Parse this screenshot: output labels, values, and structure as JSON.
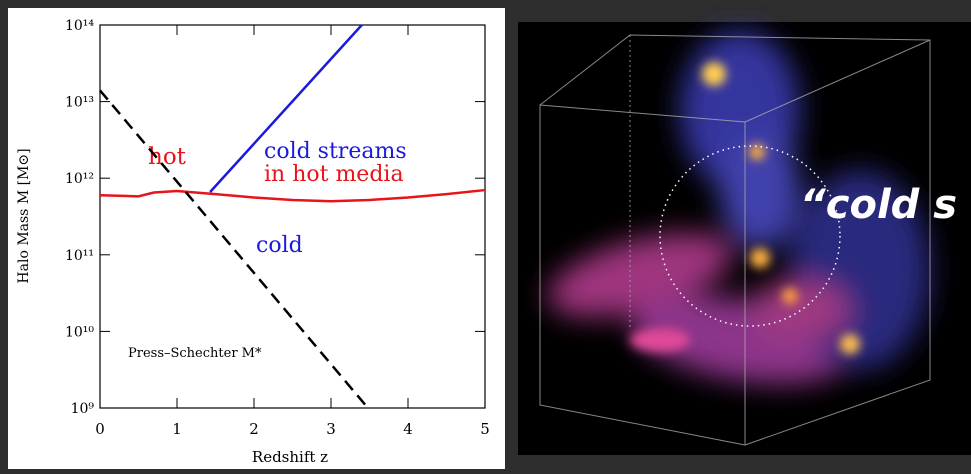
{
  "chart_data": {
    "type": "line",
    "xlabel": "Redshift z",
    "ylabel": "Halo Mass M [M⊙]",
    "xlim": [
      0,
      5
    ],
    "xticks": [
      0,
      1,
      2,
      3,
      4,
      5
    ],
    "ylim": [
      1000000000,
      100000000000000
    ],
    "yticks": [
      {
        "value": 1000000000,
        "label": "10⁹"
      },
      {
        "value": 10000000000,
        "label": "10¹⁰"
      },
      {
        "value": 100000000000,
        "label": "10¹¹"
      },
      {
        "value": 1000000000000,
        "label": "10¹²"
      },
      {
        "value": 10000000000000,
        "label": "10¹³"
      },
      {
        "value": 100000000000000,
        "label": "10¹⁴"
      }
    ],
    "yscale": "log",
    "series": [
      {
        "color": "#e8141c",
        "x": [
          0,
          0.5,
          0.7,
          1,
          1.5,
          2,
          2.5,
          3,
          3.5,
          4,
          4.5,
          5
        ],
        "values": [
          600000000000,
          580000000000,
          650000000000,
          680000000000,
          620000000000,
          560000000000,
          520000000000,
          500000000000,
          520000000000,
          560000000000,
          620000000000,
          700000000000
        ]
      },
      {
        "color": "#1a1adc",
        "x": [
          1.43,
          3.4
        ],
        "values": [
          660000000000,
          100000000000000
        ]
      },
      {
        "color": "#000000",
        "dash": true,
        "x": [
          0,
          3.48
        ],
        "values": [
          14000000000000,
          1000000000
        ]
      }
    ],
    "annotations": [
      "hot",
      "cold streams",
      "in hot media",
      "cold",
      "Press–Schechter M*"
    ]
  },
  "image": {
    "caption": "“cold s"
  }
}
